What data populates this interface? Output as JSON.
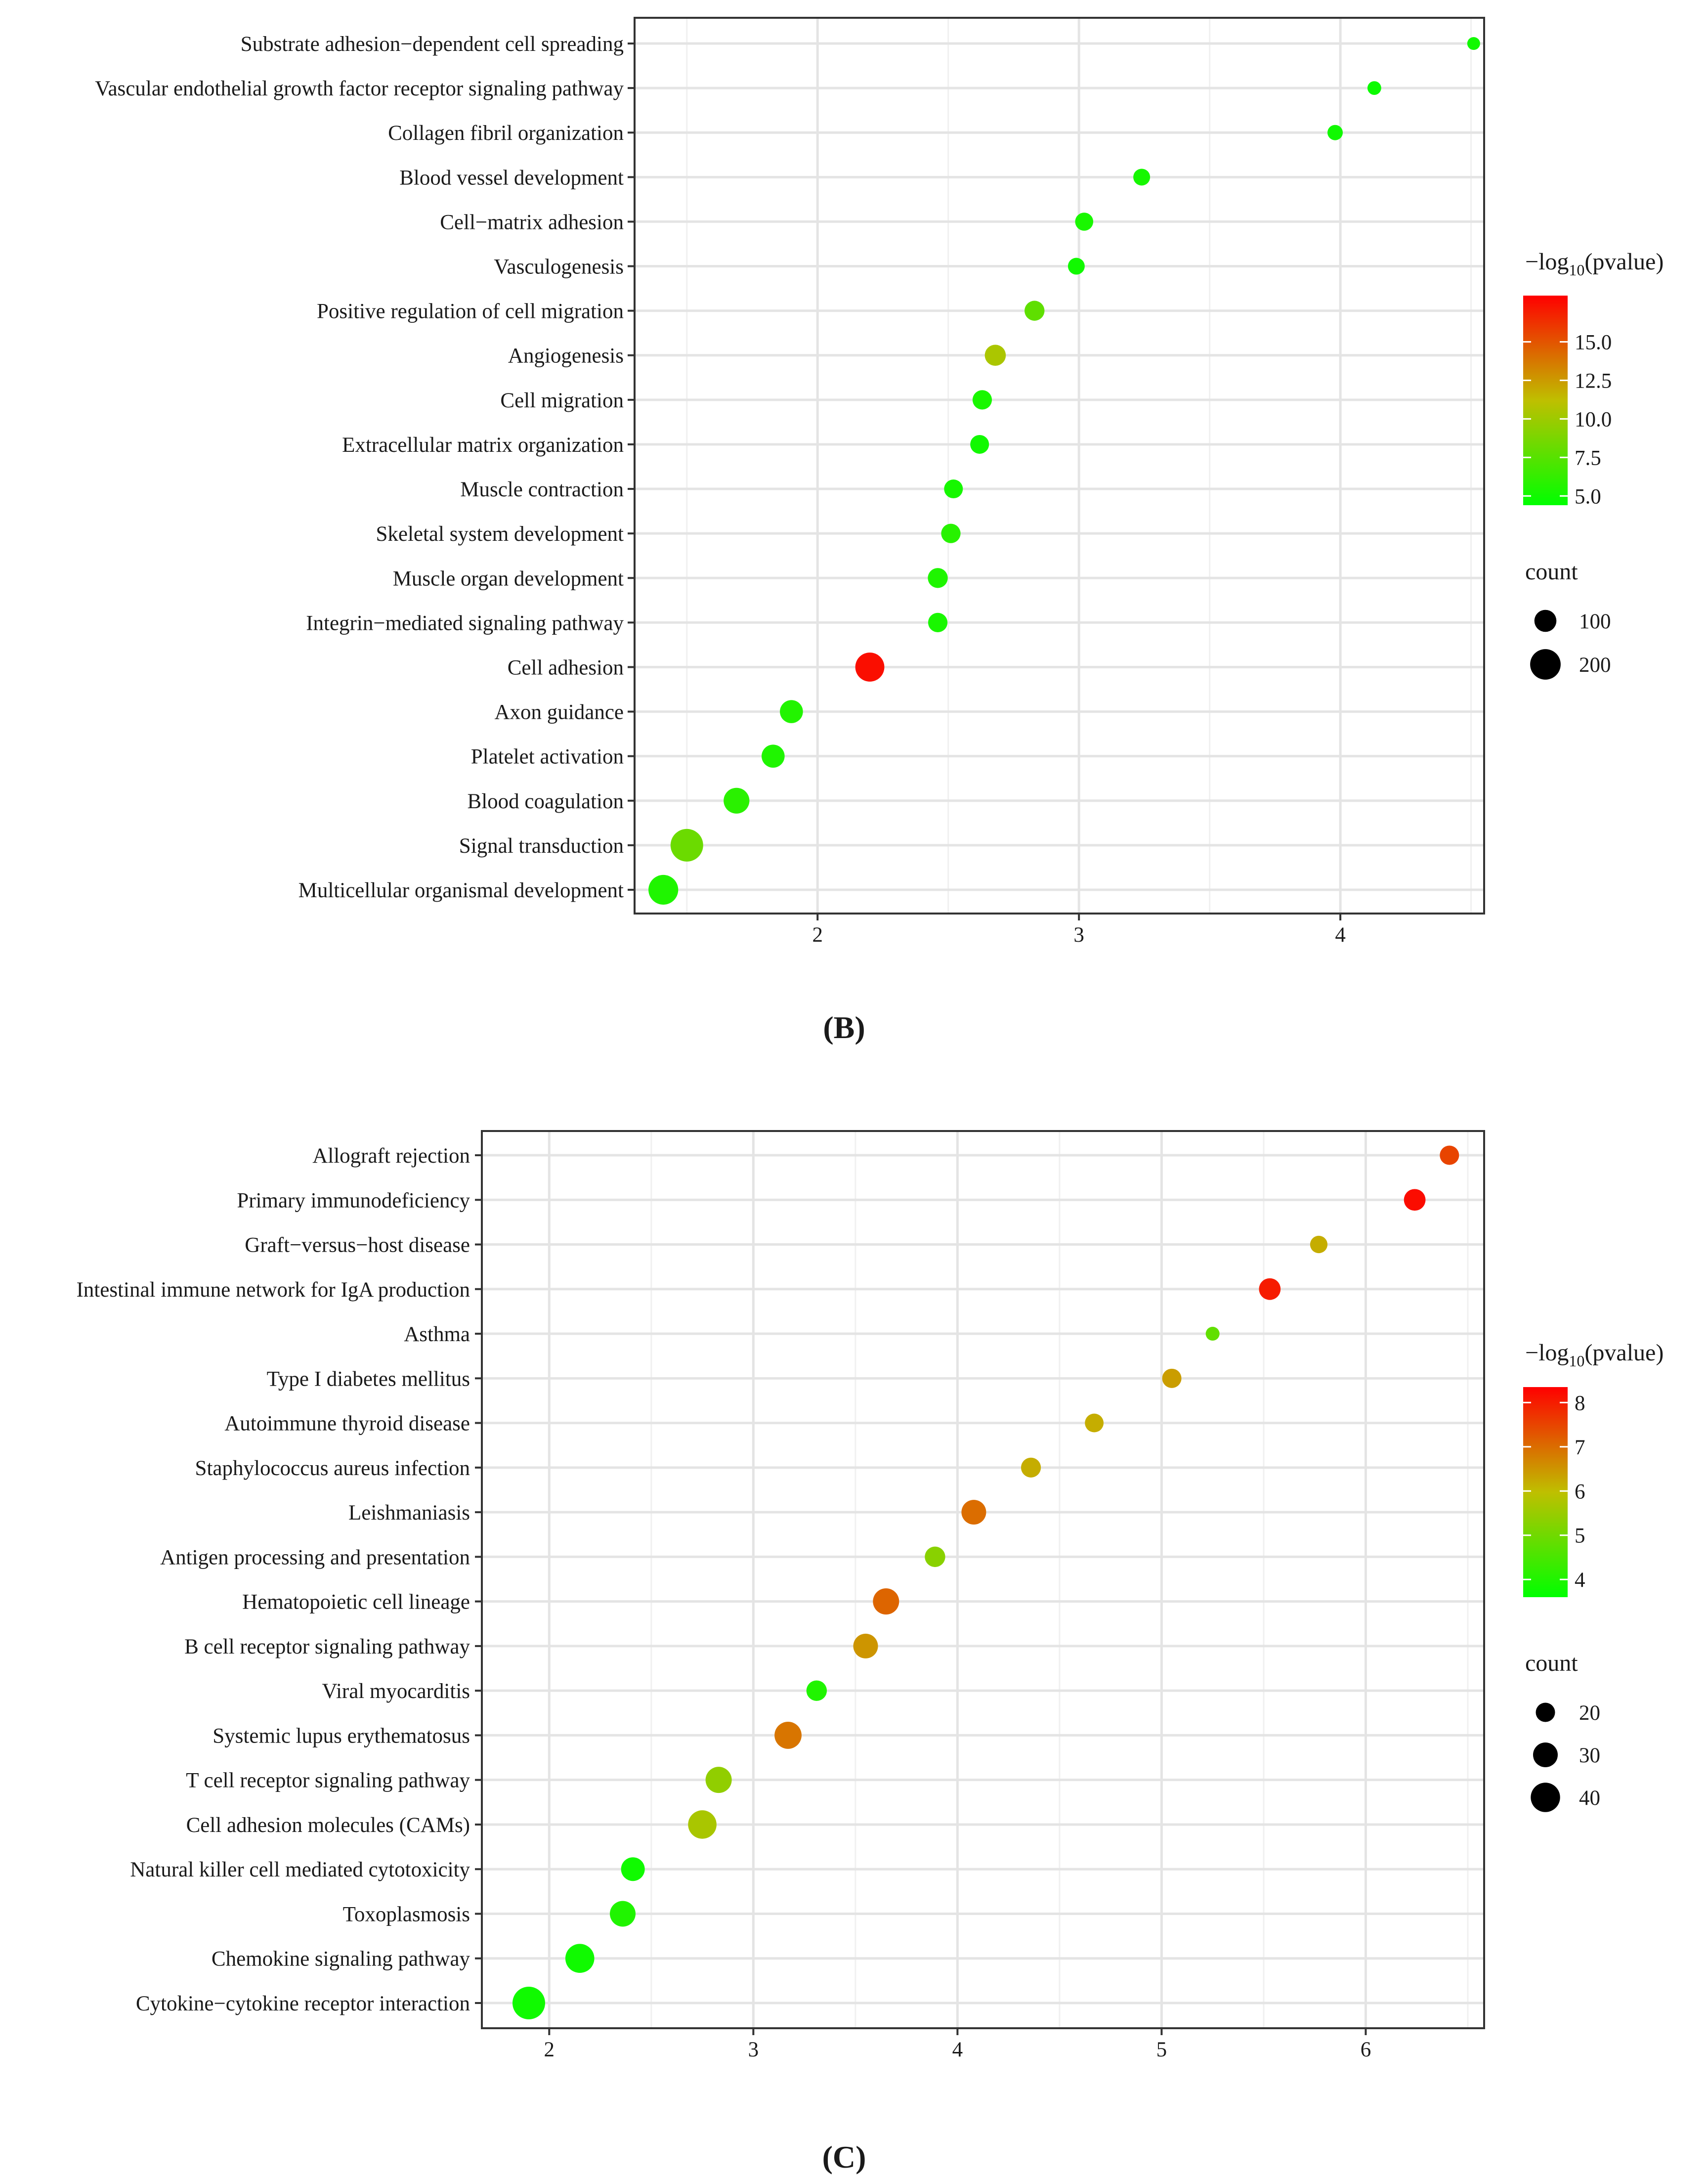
{
  "chart_data": [
    {
      "type": "scatter",
      "panel_label": "(B)",
      "xlabel": "",
      "ylabel": "",
      "xlim": [
        1.3,
        4.55
      ],
      "xticks": [
        2,
        3,
        4
      ],
      "grid": true,
      "categories": [
        "Substrate adhesion−dependent cell spreading",
        "Vascular endothelial growth factor receptor signaling pathway",
        "Collagen fibril organization",
        "Blood vessel development",
        "Cell−matrix adhesion",
        "Vasculogenesis",
        "Positive regulation of cell migration",
        "Angiogenesis",
        "Cell migration",
        "Extracellular matrix organization",
        "Muscle contraction",
        "Skeletal system development",
        "Muscle organ development",
        "Integrin−mediated signaling pathway",
        "Cell adhesion",
        "Axon guidance",
        "Platelet activation",
        "Blood coagulation",
        "Signal transduction",
        "Multicellular organismal development"
      ],
      "x": [
        4.51,
        4.13,
        3.98,
        3.24,
        3.02,
        2.99,
        2.83,
        2.68,
        2.63,
        2.62,
        2.52,
        2.51,
        2.46,
        2.46,
        2.2,
        1.9,
        1.83,
        1.69,
        1.5,
        1.41
      ],
      "neglog10_pvalue": [
        5.0,
        4.8,
        5.0,
        5.2,
        5.3,
        5.0,
        7.8,
        10.5,
        5.3,
        5.0,
        5.2,
        5.8,
        5.5,
        5.3,
        17.5,
        5.6,
        5.5,
        5.9,
        8.2,
        5.5
      ],
      "count": [
        30,
        35,
        45,
        55,
        65,
        55,
        80,
        90,
        75,
        70,
        70,
        75,
        80,
        75,
        180,
        110,
        110,
        140,
        230,
        190
      ],
      "color_legend": {
        "title_prefix": "−log",
        "title_sub": "10",
        "title_suffix": "(pvalue)",
        "min": 4.4,
        "max": 18.0,
        "ticks": [
          "15.0",
          "12.5",
          "10.0",
          "7.5",
          "5.0"
        ],
        "tick_values": [
          15.0,
          12.5,
          10.0,
          7.5,
          5.0
        ]
      },
      "size_legend": {
        "title": "count",
        "values": [
          100,
          200
        ],
        "labels": [
          "100",
          "200"
        ],
        "min": 30,
        "max": 230
      },
      "colors": {
        "low": "#00ff00",
        "mid": "#bfbf00",
        "high": "#ff0000"
      }
    },
    {
      "type": "scatter",
      "panel_label": "(C)",
      "xlabel": "",
      "ylabel": "",
      "xlim": [
        1.67,
        6.58
      ],
      "xticks": [
        2,
        3,
        4,
        5,
        6
      ],
      "grid": true,
      "categories": [
        "Allograft rejection",
        "Primary immunodeficiency",
        "Graft−versus−host disease",
        "Intestinal immune network for IgA production",
        "Asthma",
        "Type I diabetes mellitus",
        "Autoimmune thyroid disease",
        "Staphylococcus aureus infection",
        "Leishmaniasis",
        "Antigen processing and presentation",
        "Hematopoietic cell lineage",
        "B cell receptor signaling pathway",
        "Viral myocarditis",
        "Systemic lupus erythematosus",
        "T cell receptor signaling pathway",
        "Cell adhesion molecules (CAMs)",
        "Natural killer cell mediated cytotoxicity",
        "Toxoplasmosis",
        "Chemokine signaling pathway",
        "Cytokine−cytokine receptor interaction"
      ],
      "x": [
        6.41,
        6.24,
        5.77,
        5.53,
        5.25,
        5.05,
        4.67,
        4.36,
        4.08,
        3.89,
        3.65,
        3.55,
        3.31,
        3.17,
        2.83,
        2.75,
        2.41,
        2.36,
        2.15,
        1.9
      ],
      "neglog10_pvalue": [
        7.5,
        8.2,
        6.2,
        8.0,
        4.8,
        6.4,
        6.2,
        6.2,
        7.0,
        5.3,
        7.1,
        6.5,
        4.0,
        6.9,
        5.4,
        5.7,
        3.8,
        4.0,
        3.8,
        3.8
      ],
      "count": [
        20,
        24,
        17,
        24,
        12,
        20,
        19,
        21,
        30,
        22,
        33,
        30,
        22,
        35,
        33,
        38,
        28,
        32,
        39,
        48
      ],
      "color_legend": {
        "title_prefix": "−log",
        "title_sub": "10",
        "title_suffix": "(pvalue)",
        "min": 3.6,
        "max": 8.35,
        "ticks": [
          "8",
          "7",
          "6",
          "5",
          "4"
        ],
        "tick_values": [
          8,
          7,
          6,
          5,
          4
        ]
      },
      "size_legend": {
        "title": "count",
        "values": [
          20,
          30,
          40
        ],
        "labels": [
          "20",
          "30",
          "40"
        ],
        "min": 12,
        "max": 48
      },
      "colors": {
        "low": "#00ff00",
        "mid": "#bfbf00",
        "high": "#ff0000"
      }
    }
  ]
}
